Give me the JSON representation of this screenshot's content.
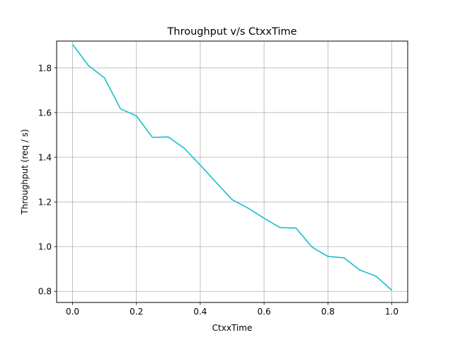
{
  "chart_data": {
    "type": "line",
    "title": "Throughput v/s CtxxTime",
    "xlabel": "CtxxTime",
    "ylabel": "Throughput (req / s)",
    "xlim": [
      -0.05,
      1.05
    ],
    "ylim": [
      0.75,
      1.92
    ],
    "xticks": [
      0.0,
      0.2,
      0.4,
      0.6,
      0.8,
      1.0
    ],
    "xtick_labels": [
      "0.0",
      "0.2",
      "0.4",
      "0.6",
      "0.8",
      "1.0"
    ],
    "yticks": [
      0.8,
      1.0,
      1.2,
      1.4,
      1.6,
      1.8
    ],
    "ytick_labels": [
      "0.8",
      "1.0",
      "1.2",
      "1.4",
      "1.6",
      "1.8"
    ],
    "grid": true,
    "series": [
      {
        "name": "Throughput",
        "color": "#17becf",
        "x": [
          0.0,
          0.05,
          0.1,
          0.15,
          0.2,
          0.25,
          0.3,
          0.35,
          0.4,
          0.45,
          0.5,
          0.55,
          0.6,
          0.65,
          0.7,
          0.75,
          0.8,
          0.85,
          0.9,
          0.95,
          1.0
        ],
        "y": [
          1.905,
          1.81,
          1.755,
          1.617,
          1.585,
          1.489,
          1.491,
          1.44,
          1.365,
          1.287,
          1.21,
          1.172,
          1.127,
          1.085,
          1.083,
          0.998,
          0.956,
          0.95,
          0.895,
          0.868,
          0.805
        ]
      }
    ]
  }
}
